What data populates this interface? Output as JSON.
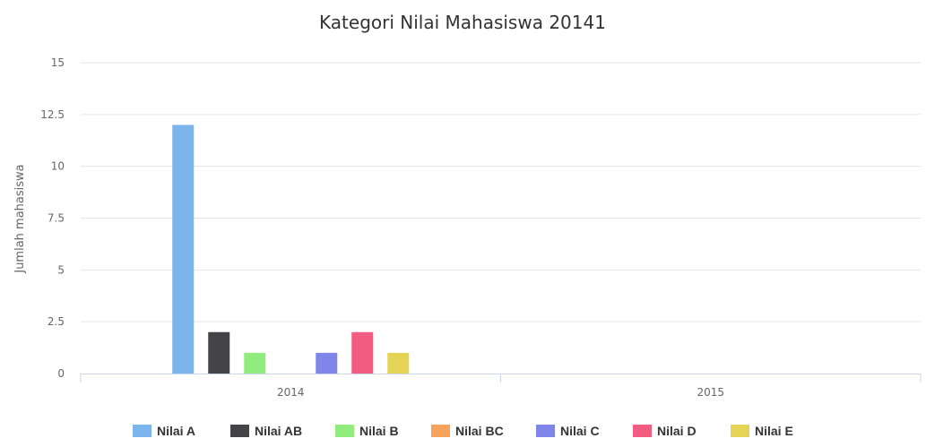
{
  "chart_data": {
    "type": "bar",
    "title": "Kategori Nilai Mahasiswa 20141",
    "ylabel": "Jumlah mahasiswa",
    "xlabel": "",
    "categories": [
      "2014",
      "2015"
    ],
    "ylim": [
      0,
      15
    ],
    "yticks": [
      "0",
      "2.5",
      "5",
      "7.5",
      "10",
      "12.5",
      "15"
    ],
    "grid": true,
    "legend_position": "bottom",
    "series": [
      {
        "name": "Nilai A",
        "color": "#7cb5ec",
        "values": [
          12,
          0
        ]
      },
      {
        "name": "Nilai AB",
        "color": "#434348",
        "values": [
          2,
          0
        ]
      },
      {
        "name": "Nilai B",
        "color": "#90ed7d",
        "values": [
          1,
          0
        ]
      },
      {
        "name": "Nilai BC",
        "color": "#f7a35c",
        "values": [
          0,
          0
        ]
      },
      {
        "name": "Nilai C",
        "color": "#8085e9",
        "values": [
          1,
          0
        ]
      },
      {
        "name": "Nilai D",
        "color": "#f15c80",
        "values": [
          2,
          0
        ]
      },
      {
        "name": "Nilai E",
        "color": "#e4d354",
        "values": [
          1,
          0
        ]
      }
    ]
  }
}
